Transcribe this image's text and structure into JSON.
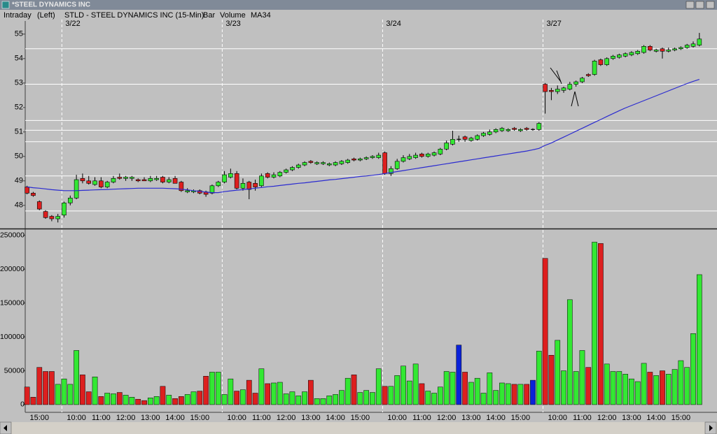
{
  "window": {
    "title": "*STEEL DYNAMICS INC"
  },
  "header": {
    "mode": "Intraday",
    "axis_side": "(Left)",
    "symbol": "STLD - STEEL DYNAMICS INC (15-Min)",
    "style": "Bar"
  },
  "chart_data": [
    {
      "type": "candlestick",
      "categories": [
        null,
        null,
        "15:00",
        null,
        null,
        null,
        null,
        null,
        "10:00",
        null,
        null,
        null,
        "11:00",
        null,
        null,
        null,
        "12:00",
        null,
        null,
        null,
        "13:00",
        null,
        null,
        null,
        "14:00",
        null,
        null,
        null,
        "15:00",
        null,
        null,
        null,
        null,
        null,
        "10:00",
        null,
        null,
        null,
        "11:00",
        null,
        null,
        null,
        "12:00",
        null,
        null,
        null,
        "13:00",
        null,
        null,
        null,
        "14:00",
        null,
        null,
        null,
        "15:00",
        null,
        null,
        null,
        null,
        null,
        "10:00",
        null,
        null,
        null,
        "11:00",
        null,
        null,
        null,
        "12:00",
        null,
        null,
        null,
        "13:00",
        null,
        null,
        null,
        "14:00",
        null,
        null,
        null,
        "15:00",
        null,
        null,
        null,
        null,
        null,
        "10:00",
        null,
        null,
        null,
        "11:00",
        null,
        null,
        null,
        "12:00",
        null,
        null,
        null,
        "13:00",
        null,
        null,
        null,
        "14:00",
        null,
        null,
        null,
        "15:00",
        null,
        null,
        null
      ],
      "sessions": [
        {
          "label": "3/22",
          "start": 6
        },
        {
          "label": "3/23",
          "start": 32
        },
        {
          "label": "3/24",
          "start": 58
        },
        {
          "label": "3/27",
          "start": 84
        }
      ],
      "open": [
        48.75,
        48.5,
        48.15,
        47.75,
        47.55,
        47.45,
        47.6,
        48.1,
        48.3,
        49.1,
        49.0,
        48.85,
        49.0,
        48.75,
        48.95,
        49.15,
        49.1,
        49.1,
        49.05,
        49.05,
        49.0,
        49.05,
        49.15,
        48.95,
        49.1,
        48.95,
        48.55,
        48.55,
        48.6,
        48.55,
        48.5,
        48.8,
        48.95,
        49.15,
        49.3,
        48.7,
        48.95,
        48.9,
        48.8,
        49.3,
        49.15,
        49.2,
        49.35,
        49.45,
        49.55,
        49.65,
        49.8,
        49.7,
        49.7,
        49.65,
        49.65,
        49.7,
        49.75,
        49.9,
        49.85,
        49.9,
        49.95,
        49.95,
        50.15,
        49.3,
        49.5,
        49.8,
        49.9,
        49.95,
        50.1,
        50.0,
        50.05,
        50.1,
        50.3,
        50.5,
        50.7,
        50.8,
        50.65,
        50.7,
        50.85,
        50.9,
        51.0,
        51.05,
        51.05,
        51.15,
        51.05,
        51.15,
        51.1,
        51.1,
        52.95,
        52.7,
        52.65,
        52.7,
        52.75,
        52.95,
        53.05,
        53.35,
        53.35,
        53.95,
        53.75,
        54.0,
        54.05,
        54.1,
        54.15,
        54.2,
        54.25,
        54.5,
        54.3,
        54.4,
        54.3,
        54.35,
        54.4,
        54.45,
        54.5,
        54.55
      ],
      "high": [
        48.8,
        48.55,
        48.2,
        47.8,
        47.6,
        47.65,
        48.15,
        48.4,
        49.25,
        49.3,
        49.2,
        49.15,
        49.15,
        49.0,
        49.2,
        49.3,
        49.2,
        49.2,
        49.1,
        49.15,
        49.2,
        49.2,
        49.2,
        49.15,
        49.2,
        49.0,
        48.7,
        48.65,
        48.65,
        48.6,
        48.85,
        49.0,
        49.4,
        49.5,
        49.4,
        49.1,
        49.0,
        49.05,
        49.3,
        49.35,
        49.35,
        49.4,
        49.5,
        49.6,
        49.7,
        49.8,
        49.85,
        49.8,
        49.8,
        49.75,
        49.8,
        49.85,
        49.9,
        49.95,
        49.95,
        50.0,
        50.05,
        50.15,
        50.2,
        49.6,
        49.9,
        50.05,
        50.1,
        50.15,
        50.15,
        50.15,
        50.2,
        50.35,
        50.65,
        51.05,
        50.85,
        50.85,
        50.8,
        50.9,
        51.0,
        51.1,
        51.15,
        51.2,
        51.15,
        51.2,
        51.15,
        51.2,
        51.15,
        51.4,
        53.0,
        52.8,
        52.9,
        52.85,
        53.05,
        53.1,
        53.25,
        53.4,
        53.95,
        54.0,
        54.05,
        54.15,
        54.2,
        54.25,
        54.3,
        54.35,
        54.55,
        54.55,
        54.4,
        54.45,
        54.45,
        54.45,
        54.5,
        54.6,
        54.7,
        55.05
      ],
      "low": [
        48.45,
        48.35,
        47.8,
        47.45,
        47.35,
        47.3,
        47.5,
        48.0,
        48.25,
        48.9,
        48.85,
        48.8,
        48.7,
        48.7,
        48.9,
        49.05,
        49.0,
        49.0,
        48.95,
        49.0,
        48.95,
        49.0,
        48.9,
        48.9,
        48.95,
        48.55,
        48.5,
        48.5,
        48.45,
        48.35,
        48.45,
        48.75,
        48.9,
        49.1,
        48.65,
        48.6,
        48.25,
        48.6,
        48.75,
        49.1,
        49.1,
        49.15,
        49.3,
        49.4,
        49.5,
        49.6,
        49.7,
        49.65,
        49.65,
        49.6,
        49.6,
        49.65,
        49.7,
        49.8,
        49.8,
        49.85,
        49.9,
        49.9,
        49.25,
        49.2,
        49.45,
        49.75,
        49.85,
        49.9,
        49.95,
        49.95,
        50.0,
        50.05,
        50.25,
        50.45,
        50.6,
        50.6,
        50.6,
        50.65,
        50.8,
        50.85,
        50.95,
        51.0,
        51.0,
        51.05,
        51.0,
        51.05,
        51.05,
        51.05,
        51.75,
        52.3,
        52.55,
        52.6,
        52.7,
        52.85,
        53.0,
        53.25,
        53.3,
        53.7,
        53.7,
        53.95,
        54.0,
        54.05,
        54.1,
        54.15,
        54.2,
        54.3,
        54.25,
        54.0,
        54.25,
        54.3,
        54.35,
        54.4,
        54.45,
        54.5
      ],
      "close": [
        48.5,
        48.4,
        47.85,
        47.5,
        47.45,
        47.55,
        48.1,
        48.3,
        49.05,
        49.0,
        48.9,
        49.0,
        48.75,
        48.95,
        49.1,
        49.1,
        49.15,
        49.15,
        49.0,
        49.0,
        49.1,
        49.1,
        48.95,
        49.05,
        48.9,
        48.6,
        48.6,
        48.6,
        48.5,
        48.45,
        48.8,
        48.95,
        49.25,
        49.3,
        48.7,
        48.9,
        48.65,
        48.75,
        49.2,
        49.15,
        49.25,
        49.35,
        49.45,
        49.55,
        49.65,
        49.75,
        49.75,
        49.75,
        49.75,
        49.7,
        49.75,
        49.8,
        49.85,
        49.85,
        49.9,
        49.95,
        50.0,
        50.05,
        49.3,
        49.5,
        49.8,
        49.95,
        50.0,
        50.05,
        50.0,
        50.1,
        50.15,
        50.3,
        50.55,
        50.7,
        50.7,
        50.7,
        50.75,
        50.85,
        50.95,
        51.0,
        51.1,
        51.15,
        51.1,
        51.1,
        51.1,
        51.1,
        51.1,
        51.35,
        52.65,
        52.65,
        52.75,
        52.8,
        52.95,
        53.05,
        53.2,
        53.3,
        53.9,
        53.75,
        54.0,
        54.1,
        54.15,
        54.2,
        54.25,
        54.3,
        54.5,
        54.35,
        54.35,
        54.3,
        54.35,
        54.4,
        54.45,
        54.55,
        54.6,
        54.8
      ],
      "up_color": "#33e833",
      "down_color": "#dd1f1f",
      "flat_color": "#0a22d8",
      "series": [
        {
          "name": "MA34",
          "color": "#2b2bd0",
          "values": [
            48.75,
            48.72,
            48.7,
            48.67,
            48.64,
            48.62,
            48.6,
            48.6,
            48.6,
            48.61,
            48.62,
            48.63,
            48.64,
            48.65,
            48.66,
            48.67,
            48.68,
            48.69,
            48.7,
            48.7,
            48.7,
            48.7,
            48.7,
            48.69,
            48.68,
            48.66,
            48.63,
            48.6,
            48.57,
            48.54,
            48.52,
            48.52,
            48.56,
            48.59,
            48.62,
            48.64,
            48.67,
            48.7,
            48.73,
            48.76,
            48.78,
            48.81,
            48.84,
            48.87,
            48.9,
            48.92,
            48.95,
            48.98,
            49.01,
            49.04,
            49.06,
            49.09,
            49.12,
            49.15,
            49.18,
            49.2,
            49.23,
            49.26,
            49.3,
            49.34,
            49.38,
            49.42,
            49.46,
            49.5,
            49.54,
            49.58,
            49.62,
            49.66,
            49.7,
            49.74,
            49.78,
            49.82,
            49.86,
            49.9,
            49.94,
            49.98,
            50.02,
            50.06,
            50.1,
            50.14,
            50.18,
            50.22,
            50.27,
            50.33,
            50.45,
            50.55,
            50.67,
            50.79,
            50.91,
            51.03,
            51.15,
            51.27,
            51.39,
            51.51,
            51.63,
            51.75,
            51.87,
            51.98,
            52.08,
            52.18,
            52.28,
            52.38,
            52.48,
            52.58,
            52.68,
            52.78,
            52.88,
            52.98,
            53.07,
            53.15
          ]
        }
      ],
      "levels": [
        54.4,
        52.95,
        51.47,
        51.07,
        50.6,
        49.2,
        47.77
      ],
      "level_color": "#ffffff",
      "ylim": [
        47.08,
        55.88
      ],
      "yticks": [
        48,
        49,
        50,
        51,
        52,
        53,
        54,
        55
      ]
    },
    {
      "type": "bar",
      "name": "Volume",
      "name_color": "#1c1cd8",
      "values": [
        26000,
        11000,
        55000,
        49000,
        49000,
        30000,
        38000,
        30000,
        80000,
        44000,
        19000,
        41000,
        12000,
        17000,
        16000,
        18000,
        14000,
        11000,
        8000,
        6000,
        10000,
        12000,
        27000,
        14000,
        9000,
        12000,
        15000,
        19000,
        20000,
        42000,
        48000,
        48000,
        15000,
        38000,
        20000,
        22000,
        36000,
        17000,
        53000,
        31000,
        32000,
        33000,
        16000,
        19000,
        13000,
        19000,
        36000,
        9000,
        9000,
        13000,
        15000,
        21000,
        39000,
        44000,
        18000,
        21000,
        18000,
        53000,
        27000,
        27000,
        43000,
        57000,
        35000,
        60000,
        31000,
        20000,
        17000,
        26000,
        49000,
        48000,
        88000,
        48000,
        33000,
        39000,
        17000,
        47000,
        21000,
        32000,
        31000,
        30000,
        30000,
        30000,
        36000,
        79000,
        216000,
        73000,
        95000,
        50000,
        155000,
        49000,
        80000,
        55000,
        240000,
        238000,
        60000,
        49000,
        49000,
        45000,
        38000,
        34000,
        61000,
        48000,
        43000,
        50000,
        45000,
        52000,
        65000,
        55000,
        105000,
        192000
      ],
      "ylim": [
        -11400,
        257000
      ],
      "yticks": [
        0,
        50000,
        100000,
        150000,
        200000,
        250000
      ]
    }
  ]
}
